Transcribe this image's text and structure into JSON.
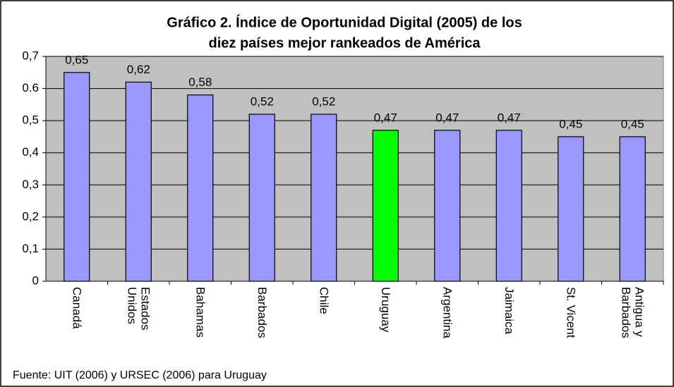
{
  "chart_data": {
    "type": "bar",
    "title": [
      "Gráfico 2. Índice de Oportunidad Digital (2005) de los",
      "diez países mejor rankeados de América"
    ],
    "categories": [
      "Canadá",
      "Estados Unidos",
      "Bahamas",
      "Barbados",
      "Chile",
      "Uruguay",
      "Argentina",
      "Jaimaica",
      "St. Vicent",
      "Antigua y Barbados"
    ],
    "values": [
      0.65,
      0.62,
      0.58,
      0.52,
      0.52,
      0.47,
      0.47,
      0.47,
      0.45,
      0.45
    ],
    "value_labels": [
      "0,65",
      "0,62",
      "0,58",
      "0,52",
      "0,52",
      "0,47",
      "0,47",
      "0,47",
      "0,45",
      "0,45"
    ],
    "colors": [
      "#9999ff",
      "#9999ff",
      "#9999ff",
      "#9999ff",
      "#9999ff",
      "#00ff00",
      "#9999ff",
      "#9999ff",
      "#9999ff",
      "#9999ff"
    ],
    "ylim": [
      0,
      0.7
    ],
    "yticks": [
      0,
      {
        "value": 0.1,
        "label": "0,1"
      },
      {
        "value": 0.2,
        "label": "0,2"
      },
      {
        "value": 0.3,
        "label": "0,3"
      },
      {
        "value": 0.4,
        "label": "0,4"
      },
      {
        "value": 0.5,
        "label": "0,5"
      },
      0.6,
      {
        "value": 0.7,
        "label": "0,7"
      }
    ],
    "grid": true,
    "source": "Fuente: UIT (2006) y URSEC (2006) para Uruguay"
  }
}
